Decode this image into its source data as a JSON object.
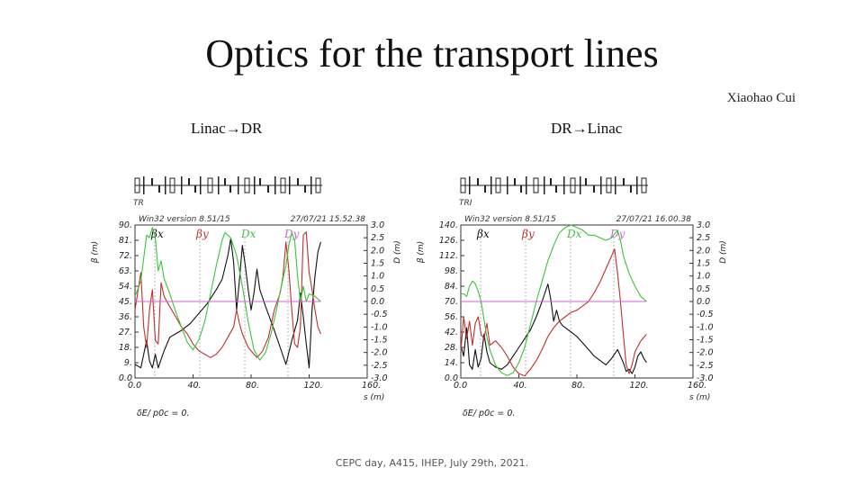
{
  "slide": {
    "title": "Optics for the transport lines",
    "author": "Xiaohao Cui",
    "left_label": "Linac→DR",
    "right_label": "DR→Linac",
    "footer": "CEPC day, A415, IHEP, July 29th, 2021."
  },
  "colors": {
    "beta_x": "#111111",
    "beta_y": "#c0302a",
    "dx": "#3cc43c",
    "dy": "#d060d0"
  },
  "chart_data": [
    {
      "type": "line",
      "lattice_label": "TR",
      "header_left": "Win32 version 8.51/15",
      "header_right": "27/07/21  15.52.38",
      "xlabel": "s (m)",
      "ylabel_left": "β (m)",
      "ylabel_right": "D (m)",
      "footer_note": "δE/ p0c  =  0.",
      "xlim": [
        0,
        160
      ],
      "ylim_left": [
        0,
        90
      ],
      "ylim_right": [
        -3,
        3
      ],
      "x_ticks": [
        "0.0",
        "40.",
        "80.",
        "120.",
        "160."
      ],
      "y_left_ticks": [
        "0.0",
        "9.",
        "18.",
        "27.",
        "36.",
        "45.",
        "54.",
        "63.",
        "72.",
        "81.",
        "90."
      ],
      "y_right_ticks": [
        "-3.0",
        "-2.5",
        "-2.0",
        "-1.5",
        "-1.0",
        "-0.5",
        "0.0",
        "0.5",
        "1.0",
        "1.5",
        "2.0",
        "2.5",
        "3.0"
      ],
      "legend": [
        "βx",
        "βy",
        "Dx",
        "Dy"
      ],
      "series": [
        {
          "name": "βx",
          "axis": "left",
          "x": [
            0,
            4,
            8,
            10,
            12,
            14,
            16,
            20,
            24,
            28,
            32,
            38,
            44,
            50,
            56,
            60,
            64,
            66,
            68,
            70,
            72,
            74,
            76,
            78,
            80,
            82,
            84,
            86,
            90,
            96,
            100,
            104,
            108,
            112,
            114,
            116,
            118,
            120,
            122,
            124,
            126,
            128
          ],
          "y": [
            8,
            6,
            22,
            10,
            6,
            14,
            6,
            16,
            24,
            26,
            28,
            32,
            38,
            44,
            52,
            58,
            72,
            82,
            68,
            40,
            58,
            78,
            66,
            52,
            40,
            50,
            64,
            52,
            42,
            28,
            18,
            8,
            22,
            34,
            50,
            36,
            20,
            6,
            40,
            60,
            74,
            80
          ]
        },
        {
          "name": "βy",
          "axis": "left",
          "x": [
            0,
            4,
            6,
            8,
            10,
            12,
            14,
            16,
            18,
            20,
            24,
            28,
            32,
            36,
            40,
            44,
            48,
            52,
            56,
            60,
            64,
            68,
            70,
            72,
            74,
            78,
            82,
            84,
            88,
            92,
            96,
            100,
            102,
            104,
            106,
            108,
            110,
            112,
            114,
            116,
            118,
            120,
            122,
            124,
            126,
            128
          ],
          "y": [
            40,
            62,
            30,
            18,
            40,
            52,
            22,
            20,
            56,
            48,
            42,
            36,
            30,
            26,
            20,
            16,
            14,
            12,
            14,
            18,
            24,
            30,
            40,
            32,
            26,
            18,
            14,
            12,
            16,
            24,
            40,
            50,
            60,
            80,
            64,
            40,
            20,
            18,
            30,
            84,
            86,
            62,
            52,
            40,
            30,
            26
          ]
        },
        {
          "name": "Dx",
          "axis": "right",
          "x": [
            0,
            4,
            8,
            10,
            12,
            14,
            16,
            18,
            20,
            24,
            28,
            32,
            36,
            40,
            44,
            48,
            52,
            56,
            60,
            62,
            66,
            70,
            74,
            78,
            82,
            86,
            90,
            94,
            98,
            100,
            104,
            106,
            108,
            110,
            112,
            114,
            116,
            118,
            120,
            124,
            128
          ],
          "y": [
            0.2,
            0.8,
            2.6,
            2.5,
            2.9,
            2.5,
            1.2,
            1.6,
            0.9,
            0.3,
            -0.4,
            -1.0,
            -1.6,
            -1.9,
            -1.5,
            -0.8,
            0.3,
            1.4,
            2.4,
            2.7,
            2.5,
            1.8,
            0.6,
            -0.8,
            -1.9,
            -2.3,
            -2.0,
            -1.2,
            -0.2,
            0.4,
            1.4,
            2.2,
            2.7,
            2.4,
            1.0,
            0.0,
            0.6,
            0.0,
            0.3,
            0.2,
            0.0
          ]
        },
        {
          "name": "Dy",
          "axis": "right",
          "x": [
            0,
            128
          ],
          "y": [
            0,
            0
          ]
        }
      ]
    },
    {
      "type": "line",
      "lattice_label": "TRI",
      "header_left": "Win32 version 8.51/15",
      "header_right": "27/07/21  16.00.38",
      "xlabel": "s (m)",
      "ylabel_left": "β (m)",
      "ylabel_right": "D (m)",
      "footer_note": "δE/ p0c  =  0.",
      "xlim": [
        0,
        160
      ],
      "ylim_left": [
        0,
        140
      ],
      "ylim_right": [
        -3,
        3
      ],
      "x_ticks": [
        "0.0",
        "40.",
        "80.",
        "120.",
        "160."
      ],
      "y_left_ticks": [
        "0.0",
        "14.",
        "28.",
        "42.",
        "56.",
        "70.",
        "84.",
        "98.",
        "112.",
        "126.",
        "140."
      ],
      "y_right_ticks": [
        "-3.0",
        "-2.5",
        "-2.0",
        "-1.5",
        "-1.0",
        "-0.5",
        "0.0",
        "0.5",
        "1.0",
        "1.5",
        "2.0",
        "2.5",
        "3.0"
      ],
      "legend": [
        "βx",
        "βy",
        "Dx",
        "Dy"
      ],
      "series": [
        {
          "name": "βx",
          "axis": "left",
          "x": [
            0,
            2,
            4,
            6,
            8,
            10,
            12,
            14,
            16,
            18,
            20,
            24,
            28,
            32,
            36,
            40,
            44,
            48,
            52,
            56,
            60,
            62,
            64,
            66,
            68,
            70,
            72,
            76,
            80,
            84,
            88,
            92,
            96,
            100,
            104,
            108,
            112,
            114,
            116,
            118,
            120,
            122,
            124,
            126,
            128
          ],
          "y": [
            30,
            20,
            46,
            12,
            8,
            26,
            10,
            18,
            40,
            24,
            14,
            10,
            8,
            12,
            20,
            28,
            36,
            44,
            56,
            70,
            86,
            72,
            52,
            62,
            52,
            48,
            46,
            42,
            38,
            32,
            26,
            20,
            16,
            12,
            18,
            26,
            14,
            6,
            8,
            4,
            10,
            20,
            24,
            18,
            14
          ]
        },
        {
          "name": "βy",
          "axis": "left",
          "x": [
            0,
            2,
            4,
            6,
            8,
            10,
            12,
            14,
            16,
            18,
            20,
            24,
            28,
            32,
            36,
            40,
            44,
            48,
            52,
            56,
            60,
            64,
            68,
            72,
            76,
            80,
            84,
            88,
            92,
            96,
            100,
            104,
            106,
            108,
            110,
            112,
            114,
            116,
            118,
            120,
            124,
            128
          ],
          "y": [
            24,
            56,
            36,
            52,
            30,
            50,
            56,
            40,
            36,
            50,
            30,
            34,
            28,
            20,
            10,
            4,
            2,
            8,
            16,
            26,
            38,
            46,
            52,
            56,
            60,
            62,
            66,
            70,
            78,
            88,
            100,
            112,
            118,
            96,
            70,
            40,
            12,
            4,
            12,
            24,
            34,
            40
          ]
        },
        {
          "name": "Dx",
          "axis": "right",
          "x": [
            0,
            2,
            4,
            6,
            8,
            10,
            12,
            14,
            16,
            18,
            20,
            24,
            28,
            32,
            36,
            40,
            44,
            48,
            52,
            56,
            60,
            64,
            68,
            72,
            76,
            80,
            84,
            88,
            92,
            96,
            100,
            104,
            108,
            110,
            112,
            116,
            120,
            124,
            128
          ],
          "y": [
            0.3,
            0.3,
            0.2,
            0.6,
            0.8,
            0.7,
            0.4,
            0.0,
            -0.7,
            -1.4,
            -1.9,
            -2.5,
            -2.8,
            -2.9,
            -2.8,
            -2.4,
            -1.8,
            -0.9,
            0.0,
            0.8,
            1.6,
            2.2,
            2.7,
            2.9,
            3.0,
            2.9,
            2.8,
            2.6,
            2.6,
            2.5,
            2.4,
            2.5,
            2.8,
            2.4,
            1.8,
            1.1,
            0.6,
            0.2,
            0.0
          ]
        },
        {
          "name": "Dy",
          "axis": "right",
          "x": [
            0,
            128
          ],
          "y": [
            0,
            0
          ]
        }
      ]
    }
  ]
}
